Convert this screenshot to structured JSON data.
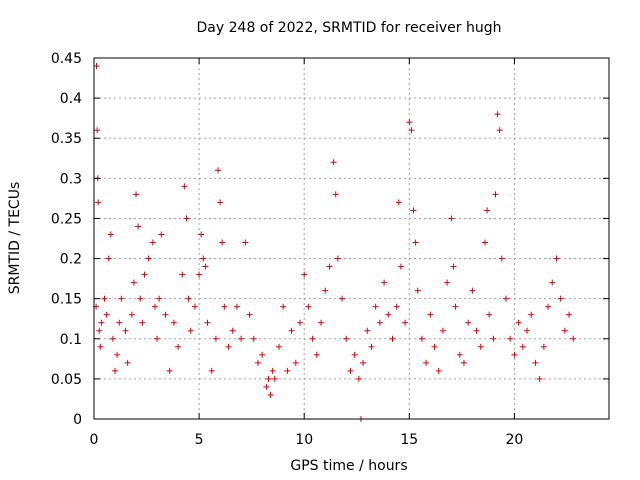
{
  "chart_data": {
    "type": "scatter",
    "title": "Day 248 of 2022, SRMTID for receiver hugh",
    "xlabel": "GPS time / hours",
    "ylabel": "SRMTID / TECUs",
    "xlim": [
      0,
      24.5
    ],
    "ylim": [
      0,
      0.45
    ],
    "xticks": [
      0,
      5,
      10,
      15,
      20
    ],
    "yticks": [
      0,
      0.05,
      0.1,
      0.15,
      0.2,
      0.25,
      0.3,
      0.35,
      0.4,
      0.45
    ],
    "xtick_labels": [
      "0",
      "5",
      "10",
      "15",
      "20"
    ],
    "ytick_labels": [
      "0",
      "0.05",
      "0.1",
      "0.15",
      "0.2",
      "0.25",
      "0.3",
      "0.35",
      "0.4",
      "0.45"
    ],
    "grid": true,
    "marker": "+",
    "color": "#e00000",
    "series": [
      {
        "name": "SRMTID",
        "x": [
          0.1,
          0.12,
          0.15,
          0.18,
          0.2,
          0.25,
          0.3,
          0.35,
          0.5,
          0.6,
          0.7,
          0.8,
          0.9,
          1.0,
          1.1,
          1.2,
          1.3,
          1.5,
          1.6,
          1.8,
          1.9,
          2.0,
          2.1,
          2.2,
          2.3,
          2.4,
          2.6,
          2.8,
          2.9,
          3.0,
          3.1,
          3.2,
          3.4,
          3.6,
          3.8,
          4.0,
          4.2,
          4.3,
          4.4,
          4.5,
          4.6,
          4.8,
          5.0,
          5.1,
          5.2,
          5.3,
          5.4,
          5.6,
          5.8,
          5.9,
          6.0,
          6.1,
          6.2,
          6.4,
          6.6,
          6.8,
          7.0,
          7.2,
          7.4,
          7.6,
          7.8,
          8.0,
          8.2,
          8.3,
          8.4,
          8.5,
          8.6,
          8.8,
          9.0,
          9.2,
          9.4,
          9.6,
          9.8,
          10.0,
          10.2,
          10.4,
          10.6,
          10.8,
          11.0,
          11.2,
          11.4,
          11.5,
          11.6,
          11.8,
          12.0,
          12.2,
          12.4,
          12.6,
          12.7,
          12.8,
          13.0,
          13.2,
          13.4,
          13.6,
          13.8,
          14.0,
          14.2,
          14.4,
          14.5,
          14.6,
          14.8,
          15.0,
          15.1,
          15.2,
          15.3,
          15.4,
          15.6,
          15.8,
          16.0,
          16.2,
          16.4,
          16.6,
          16.8,
          17.0,
          17.1,
          17.2,
          17.4,
          17.6,
          17.8,
          18.0,
          18.2,
          18.4,
          18.6,
          18.7,
          18.8,
          19.0,
          19.1,
          19.2,
          19.3,
          19.4,
          19.6,
          19.8,
          20.0,
          20.2,
          20.4,
          20.6,
          20.8,
          21.0,
          21.2,
          21.4,
          21.6,
          21.8,
          22.0,
          22.2,
          22.4,
          22.6,
          22.8
        ],
        "y": [
          0.14,
          0.44,
          0.36,
          0.3,
          0.27,
          0.11,
          0.09,
          0.12,
          0.15,
          0.13,
          0.2,
          0.23,
          0.1,
          0.06,
          0.08,
          0.12,
          0.15,
          0.11,
          0.07,
          0.13,
          0.17,
          0.28,
          0.24,
          0.15,
          0.12,
          0.18,
          0.2,
          0.22,
          0.14,
          0.1,
          0.15,
          0.23,
          0.13,
          0.06,
          0.12,
          0.09,
          0.18,
          0.29,
          0.25,
          0.15,
          0.11,
          0.14,
          0.18,
          0.23,
          0.2,
          0.19,
          0.12,
          0.06,
          0.1,
          0.31,
          0.27,
          0.22,
          0.14,
          0.09,
          0.11,
          0.14,
          0.1,
          0.22,
          0.13,
          0.1,
          0.07,
          0.08,
          0.04,
          0.05,
          0.03,
          0.06,
          0.05,
          0.09,
          0.14,
          0.06,
          0.11,
          0.07,
          0.12,
          0.18,
          0.14,
          0.1,
          0.08,
          0.12,
          0.16,
          0.19,
          0.32,
          0.28,
          0.2,
          0.15,
          0.1,
          0.06,
          0.08,
          0.05,
          0.0,
          0.07,
          0.11,
          0.09,
          0.14,
          0.12,
          0.17,
          0.13,
          0.1,
          0.14,
          0.27,
          0.19,
          0.12,
          0.37,
          0.36,
          0.26,
          0.22,
          0.16,
          0.1,
          0.07,
          0.13,
          0.09,
          0.06,
          0.11,
          0.17,
          0.25,
          0.19,
          0.14,
          0.08,
          0.07,
          0.12,
          0.16,
          0.11,
          0.09,
          0.22,
          0.26,
          0.13,
          0.1,
          0.28,
          0.38,
          0.36,
          0.2,
          0.15,
          0.1,
          0.08,
          0.12,
          0.09,
          0.11,
          0.13,
          0.07,
          0.05,
          0.09,
          0.14,
          0.17,
          0.2,
          0.15,
          0.11,
          0.13,
          0.1
        ]
      }
    ]
  }
}
